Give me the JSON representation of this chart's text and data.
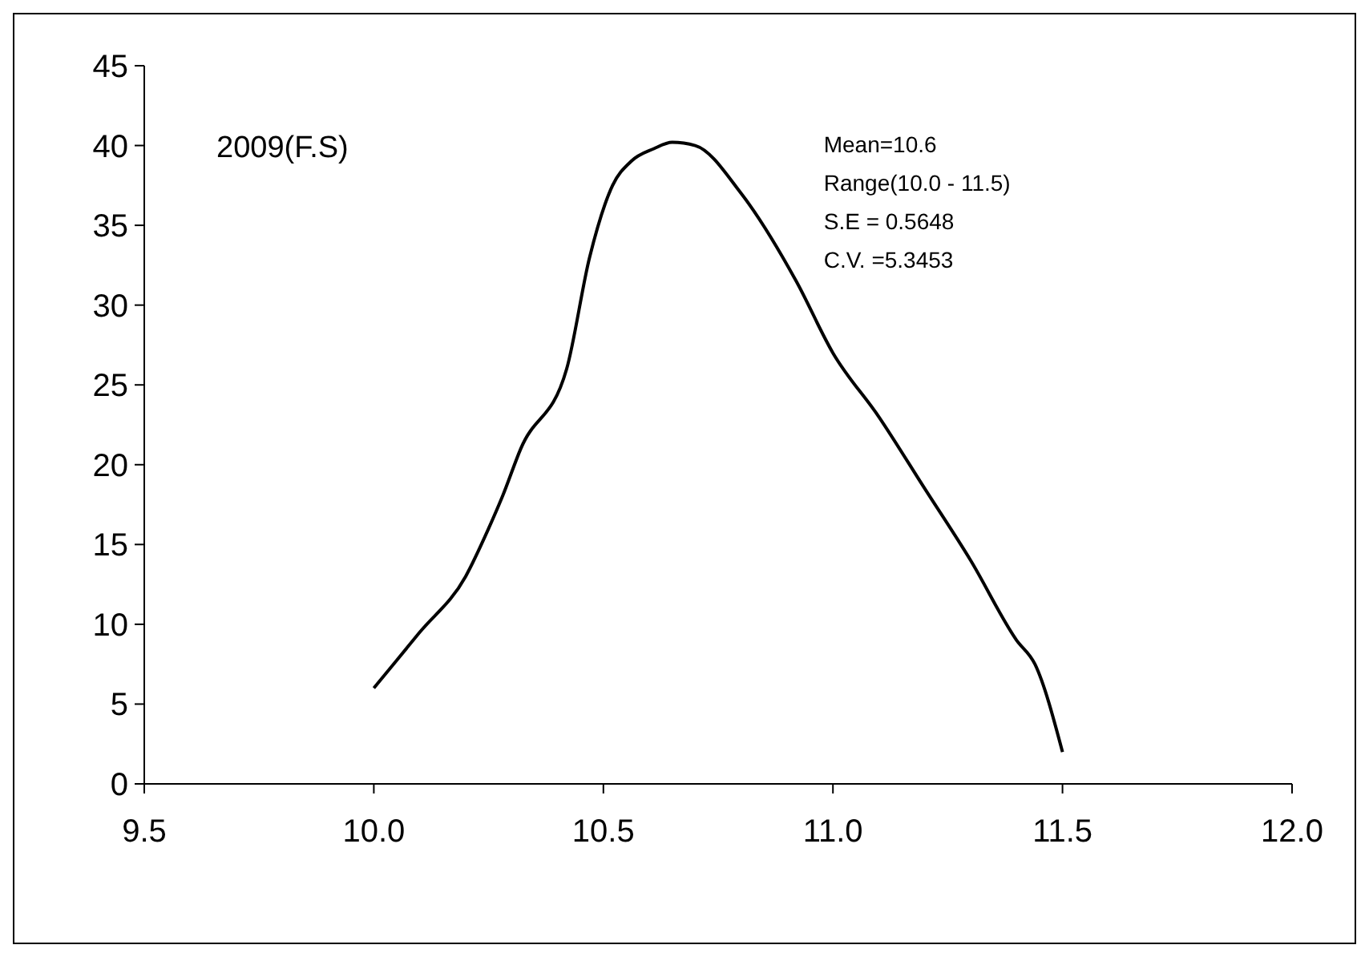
{
  "chart_data": {
    "type": "line",
    "x": [
      10.0,
      10.1,
      10.2,
      10.25,
      10.28,
      10.32,
      10.42,
      10.47,
      10.52,
      10.56,
      10.61,
      10.65,
      10.7,
      10.8,
      10.92,
      11.0,
      11.1,
      11.2,
      11.3,
      11.4,
      11.44,
      11.5
    ],
    "series": [
      {
        "color": "#000000",
        "values": [
          6,
          9.5,
          13,
          16,
          18,
          21,
          26,
          33,
          37.5,
          39,
          39.8,
          40.2,
          40,
          37,
          31.5,
          27,
          23,
          18.5,
          14,
          9,
          7.5,
          2
        ]
      }
    ],
    "xlim": [
      9.5,
      12.0
    ],
    "xticks": [
      {
        "value": 9.5,
        "label": "9.5"
      },
      {
        "value": 10,
        "label": "10.0"
      },
      {
        "value": 10.5,
        "label": "10.5"
      },
      {
        "value": 11,
        "label": "11.0"
      },
      {
        "value": 11.5,
        "label": "11.5"
      },
      {
        "value": 12,
        "label": "12.0"
      }
    ],
    "ylim": [
      0,
      45
    ],
    "yticks": [
      0,
      5,
      10,
      15,
      20,
      25,
      30,
      35,
      40,
      45
    ],
    "annotations": [
      "2009(F.S)",
      "Mean=10.6",
      "Range(10.0 - 11.5)",
      "S.E = 0.5648",
      "C.V. =5.3453"
    ],
    "grid": false,
    "marker": "none",
    "line_style": "solid"
  }
}
